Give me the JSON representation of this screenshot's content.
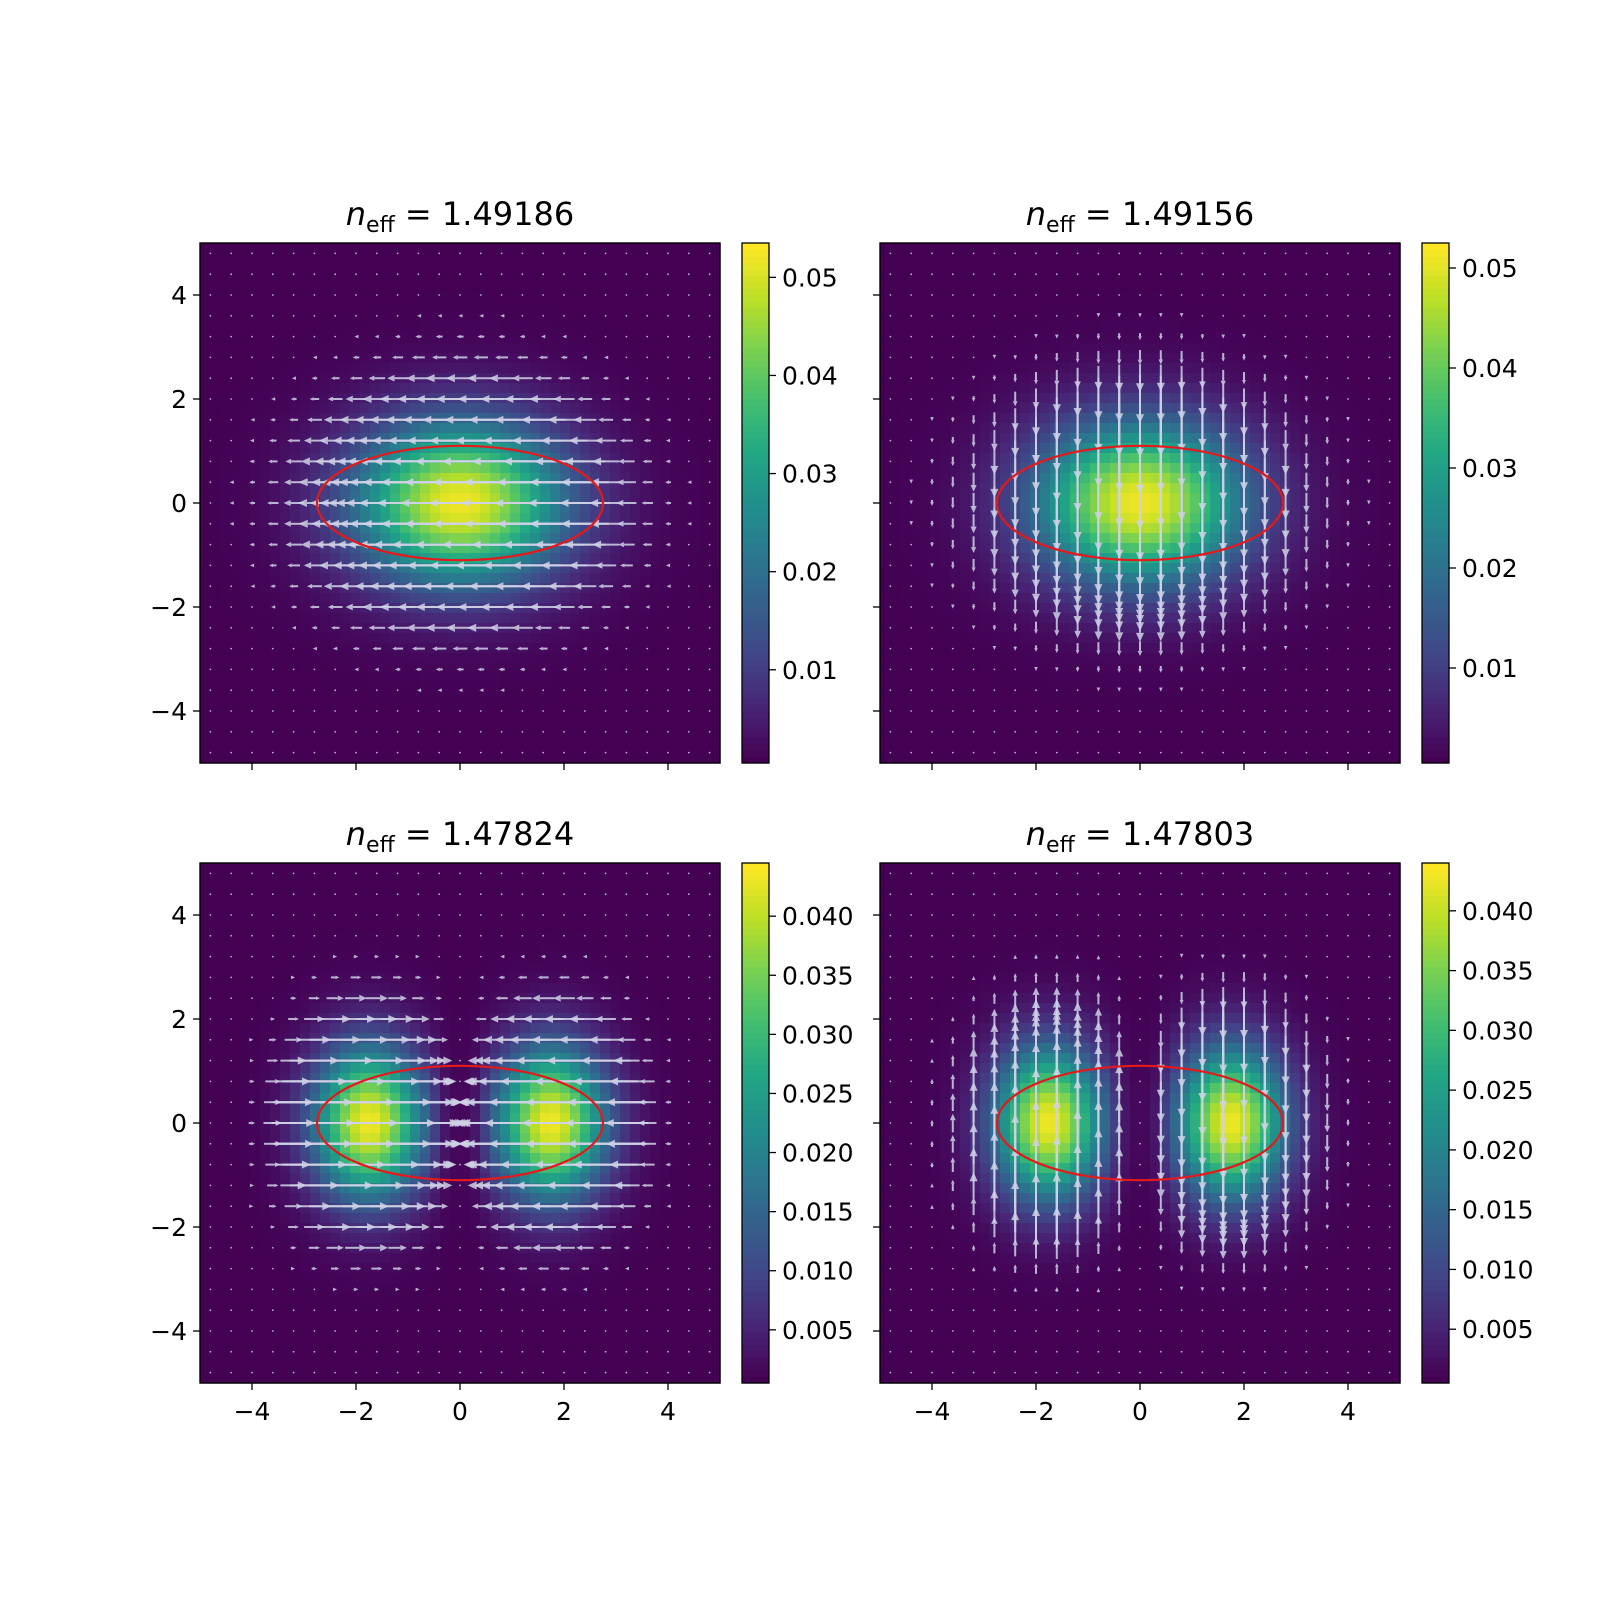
{
  "chart_data": [
    {
      "type": "heatmap",
      "title": {
        "n": "n",
        "sub": "eff",
        "value": "= 1.49186"
      },
      "mode": "fundamental",
      "field_direction": "horizontal",
      "intensity_peak": 0.0535,
      "lobe_centers_x": [
        0
      ],
      "xlim": [
        -5,
        5
      ],
      "ylim": [
        -5,
        5
      ],
      "xticks": [
        "-4",
        "-2",
        "0",
        "2",
        "4"
      ],
      "yticks": [
        "4",
        "2",
        "0",
        "-2",
        "-4"
      ],
      "show_x_tick_labels": false,
      "show_y_tick_labels": true,
      "core_ellipse": {
        "cx": 0,
        "cy": 0,
        "rx": 2.75,
        "ry": 1.1,
        "color": "#e31a1c"
      },
      "colorbar": {
        "vmin": 0.0005,
        "vmax": 0.0535,
        "ticks": [
          "0.01",
          "0.02",
          "0.03",
          "0.04",
          "0.05"
        ]
      }
    },
    {
      "type": "heatmap",
      "title": {
        "n": "n",
        "sub": "eff",
        "value": "= 1.49156"
      },
      "mode": "fundamental",
      "field_direction": "vertical",
      "intensity_peak": 0.0525,
      "lobe_centers_x": [
        0
      ],
      "xlim": [
        -5,
        5
      ],
      "ylim": [
        -5,
        5
      ],
      "xticks": [
        "-4",
        "-2",
        "0",
        "2",
        "4"
      ],
      "yticks": [
        "4",
        "2",
        "0",
        "-2",
        "-4"
      ],
      "show_x_tick_labels": false,
      "show_y_tick_labels": false,
      "core_ellipse": {
        "cx": 0,
        "cy": 0,
        "rx": 2.75,
        "ry": 1.1,
        "color": "#e31a1c"
      },
      "colorbar": {
        "vmin": 0.0005,
        "vmax": 0.0525,
        "ticks": [
          "0.01",
          "0.02",
          "0.03",
          "0.04",
          "0.05"
        ]
      }
    },
    {
      "type": "heatmap",
      "title": {
        "n": "n",
        "sub": "eff",
        "value": "= 1.47824"
      },
      "mode": "first-order",
      "field_direction": "horizontal",
      "intensity_peak": 0.0445,
      "lobe_centers_x": [
        -1.75,
        1.75
      ],
      "xlim": [
        -5,
        5
      ],
      "ylim": [
        -5,
        5
      ],
      "xticks": [
        "-4",
        "-2",
        "0",
        "2",
        "4"
      ],
      "yticks": [
        "4",
        "2",
        "0",
        "-2",
        "-4"
      ],
      "show_x_tick_labels": true,
      "show_y_tick_labels": true,
      "core_ellipse": {
        "cx": 0,
        "cy": 0,
        "rx": 2.75,
        "ry": 1.1,
        "color": "#e31a1c"
      },
      "colorbar": {
        "vmin": 0.0005,
        "vmax": 0.0445,
        "ticks": [
          "0.005",
          "0.010",
          "0.015",
          "0.020",
          "0.025",
          "0.030",
          "0.035",
          "0.040"
        ]
      }
    },
    {
      "type": "heatmap",
      "title": {
        "n": "n",
        "sub": "eff",
        "value": "= 1.47803"
      },
      "mode": "first-order",
      "field_direction": "vertical",
      "intensity_peak": 0.044,
      "lobe_centers_x": [
        -1.75,
        1.75
      ],
      "xlim": [
        -5,
        5
      ],
      "ylim": [
        -5,
        5
      ],
      "xticks": [
        "-4",
        "-2",
        "0",
        "2",
        "4"
      ],
      "yticks": [
        "4",
        "2",
        "0",
        "-2",
        "-4"
      ],
      "show_x_tick_labels": true,
      "show_y_tick_labels": false,
      "core_ellipse": {
        "cx": 0,
        "cy": 0,
        "rx": 2.75,
        "ry": 1.1,
        "color": "#e31a1c"
      },
      "colorbar": {
        "vmin": 0.0005,
        "vmax": 0.044,
        "ticks": [
          "0.005",
          "0.010",
          "0.015",
          "0.020",
          "0.025",
          "0.030",
          "0.035",
          "0.040"
        ]
      }
    }
  ]
}
